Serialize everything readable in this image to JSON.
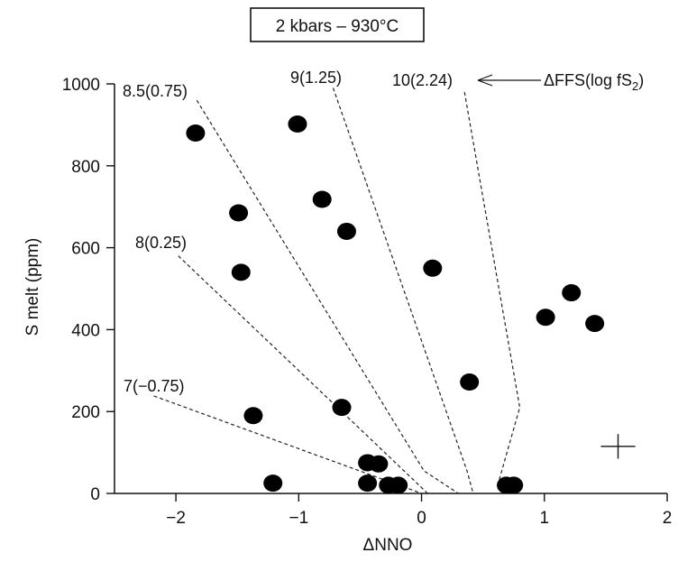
{
  "chart_data": {
    "type": "scatter",
    "title": "2 kbars – 930°C",
    "xlabel": "ΔNNO",
    "ylabel": "S melt (ppm)",
    "xlim": [
      -2.5,
      2.0
    ],
    "ylim": [
      0,
      1000
    ],
    "xticks": [
      -2,
      -1,
      0,
      1,
      2
    ],
    "xtick_labels": [
      "−2",
      "−1",
      "0",
      "1",
      "2"
    ],
    "yticks": [
      0,
      200,
      400,
      600,
      800,
      1000
    ],
    "ytick_labels": [
      "0",
      "200",
      "400",
      "600",
      "800",
      "1000"
    ],
    "grid": false,
    "legend": "none",
    "points": [
      {
        "x": -1.84,
        "y": 880
      },
      {
        "x": -1.01,
        "y": 902
      },
      {
        "x": -0.81,
        "y": 718
      },
      {
        "x": -1.49,
        "y": 685
      },
      {
        "x": -0.61,
        "y": 640
      },
      {
        "x": -1.47,
        "y": 540
      },
      {
        "x": 0.09,
        "y": 550
      },
      {
        "x": 1.22,
        "y": 490
      },
      {
        "x": 1.01,
        "y": 430
      },
      {
        "x": 1.41,
        "y": 415
      },
      {
        "x": 0.39,
        "y": 272
      },
      {
        "x": -0.65,
        "y": 210
      },
      {
        "x": -1.37,
        "y": 190
      },
      {
        "x": -0.44,
        "y": 75
      },
      {
        "x": -0.35,
        "y": 72
      },
      {
        "x": -1.21,
        "y": 25
      },
      {
        "x": -0.44,
        "y": 25
      },
      {
        "x": -0.27,
        "y": 20
      },
      {
        "x": -0.19,
        "y": 20
      },
      {
        "x": 0.69,
        "y": 20
      },
      {
        "x": 0.75,
        "y": 20
      }
    ],
    "buffer_lines": [
      {
        "label": "10(2.24)",
        "points": [
          [
            0.35,
            980
          ],
          [
            0.8,
            210
          ],
          [
            0.62,
            20
          ]
        ]
      },
      {
        "label": "9(1.25)",
        "points": [
          [
            -0.72,
            990
          ],
          [
            0.37,
            55
          ],
          [
            0.42,
            0
          ]
        ]
      },
      {
        "label": "8.5(0.75)",
        "points": [
          [
            -1.83,
            960
          ],
          [
            0.02,
            55
          ],
          [
            0.3,
            0
          ]
        ]
      },
      {
        "label": "8(0.25)",
        "points": [
          [
            -1.98,
            580
          ],
          [
            0.05,
            0
          ]
        ]
      },
      {
        "label": "7(−0.75)",
        "points": [
          [
            -2.18,
            238
          ],
          [
            0.0,
            0
          ]
        ]
      }
    ],
    "annotation": "ΔFFS(log fS",
    "annotation_subscript": "2",
    "annotation_close": ")",
    "error_bar": {
      "x": 1.6,
      "y": 115,
      "dx": 0.14,
      "dy": 30
    }
  }
}
